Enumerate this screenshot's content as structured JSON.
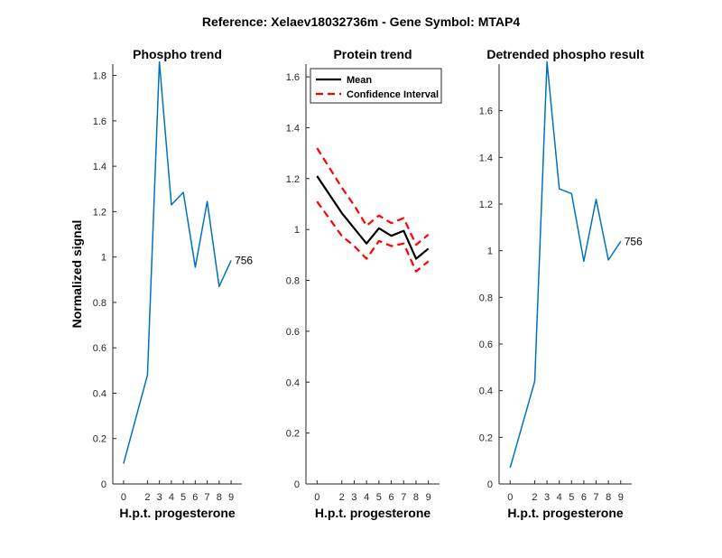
{
  "figure": {
    "title": "Reference:  Xelaev18032736m - Gene Symbol:  MTAP4"
  },
  "chart_data": [
    {
      "type": "line",
      "title": "Phospho trend",
      "xlabel": "H.p.t. progesterone",
      "ylabel": "Normalized signal",
      "x": [
        0,
        2,
        3,
        4,
        5,
        6,
        7,
        8,
        9
      ],
      "x_tick_labels": [
        "0",
        "2",
        "3",
        "4",
        "5",
        "6",
        "7",
        "8",
        "9"
      ],
      "ylim": [
        0,
        1.85
      ],
      "y_ticks": [
        0,
        0.2,
        0.4,
        0.6,
        0.8,
        1,
        1.2,
        1.4,
        1.6,
        1.8
      ],
      "y_tick_labels": [
        "0",
        "0.2",
        "0.4",
        "0.6",
        "0.8",
        "1",
        "1.2",
        "1.4",
        "1.6",
        "1.8"
      ],
      "series": [
        {
          "values": [
            0.09,
            0.48,
            1.86,
            1.23,
            1.285,
            0.955,
            1.245,
            0.87,
            0.985
          ],
          "color": "#0072BD",
          "style": "solid"
        }
      ],
      "annotation": "756",
      "grid": false
    },
    {
      "type": "line",
      "title": "Protein trend",
      "xlabel": "H.p.t. progesterone",
      "ylabel": "",
      "x": [
        0,
        2,
        3,
        4,
        5,
        6,
        7,
        8,
        9
      ],
      "x_tick_labels": [
        "0",
        "2",
        "3",
        "4",
        "5",
        "6",
        "7",
        "8",
        "9"
      ],
      "ylim": [
        0,
        1.65
      ],
      "y_ticks": [
        0,
        0.2,
        0.4,
        0.6,
        0.8,
        1,
        1.2,
        1.4,
        1.6
      ],
      "y_tick_labels": [
        "0",
        "0.2",
        "0.4",
        "0.6",
        "0.8",
        "1",
        "1.2",
        "1.4",
        "1.6"
      ],
      "series": [
        {
          "name": "Mean",
          "values": [
            1.21,
            1.065,
            1.005,
            0.945,
            1.005,
            0.975,
            0.995,
            0.885,
            0.925
          ],
          "color": "#000000",
          "style": "solid"
        },
        {
          "name": "Confidence Interval",
          "values": [
            1.32,
            1.165,
            1.095,
            1.015,
            1.055,
            1.025,
            1.045,
            0.94,
            0.98
          ],
          "color": "#FF0000",
          "style": "dashed"
        },
        {
          "values": [
            1.11,
            0.975,
            0.935,
            0.885,
            0.955,
            0.935,
            0.945,
            0.835,
            0.875
          ],
          "color": "#FF0000",
          "style": "dashed"
        }
      ],
      "legend": {
        "placement": "top-left",
        "entries": [
          "Mean",
          "Confidence Interval"
        ]
      },
      "grid": false
    },
    {
      "type": "line",
      "title": "Detrended phospho result",
      "xlabel": "H.p.t. progesterone",
      "ylabel": "",
      "x": [
        0,
        2,
        3,
        4,
        5,
        6,
        7,
        8,
        9
      ],
      "x_tick_labels": [
        "0",
        "2",
        "3",
        "4",
        "5",
        "6",
        "7",
        "8",
        "9"
      ],
      "ylim": [
        0,
        1.8
      ],
      "y_ticks": [
        0,
        0.2,
        0.4,
        0.6,
        0.8,
        1,
        1.2,
        1.4,
        1.6
      ],
      "y_tick_labels": [
        "0",
        "0.2",
        "0.4",
        "0.6",
        "0.8",
        "1",
        "1.2",
        "1.4",
        "1.6"
      ],
      "series": [
        {
          "values": [
            0.07,
            0.44,
            1.81,
            1.265,
            1.245,
            0.955,
            1.22,
            0.96,
            1.04
          ],
          "color": "#0072BD",
          "style": "solid"
        }
      ],
      "annotation": "756",
      "grid": false
    }
  ]
}
